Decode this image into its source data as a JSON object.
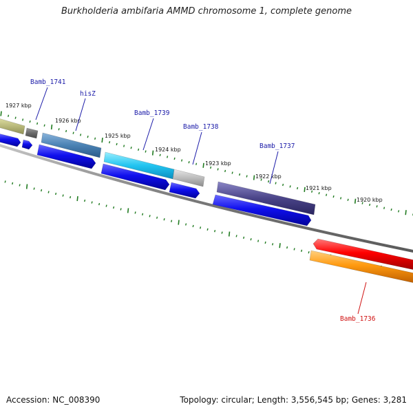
{
  "title": "Burkholderia ambifaria AMMD chromosome 1, complete genome",
  "footer": {
    "accession": "Accession: NC_008390",
    "summary": "Topology: circular; Length: 3,556,545 bp; Genes: 3,281"
  },
  "colors": {
    "backbone": "#7a7a7a",
    "ticks": "#1f7a1f",
    "forward_label": "#1a1aa8",
    "reverse_label": "#d01010",
    "cds_forward": "#1212e6",
    "cds_reverse": "#ff0000"
  },
  "kbp_ticks": [
    "1927 kbp",
    "1926 kbp",
    "1925 kbp",
    "1924 kbp",
    "1923 kbp",
    "1922 kbp",
    "1921 kbp",
    "1920 kbp"
  ],
  "gene_labels": [
    {
      "text": "Bamb_1741",
      "strand": "forward"
    },
    {
      "text": "hisZ",
      "strand": "forward"
    },
    {
      "text": "Bamb_1739",
      "strand": "forward"
    },
    {
      "text": "Bamb_1738",
      "strand": "forward"
    },
    {
      "text": "Bamb_1737",
      "strand": "forward"
    },
    {
      "text": "Bamb_1736",
      "strand": "reverse"
    }
  ]
}
